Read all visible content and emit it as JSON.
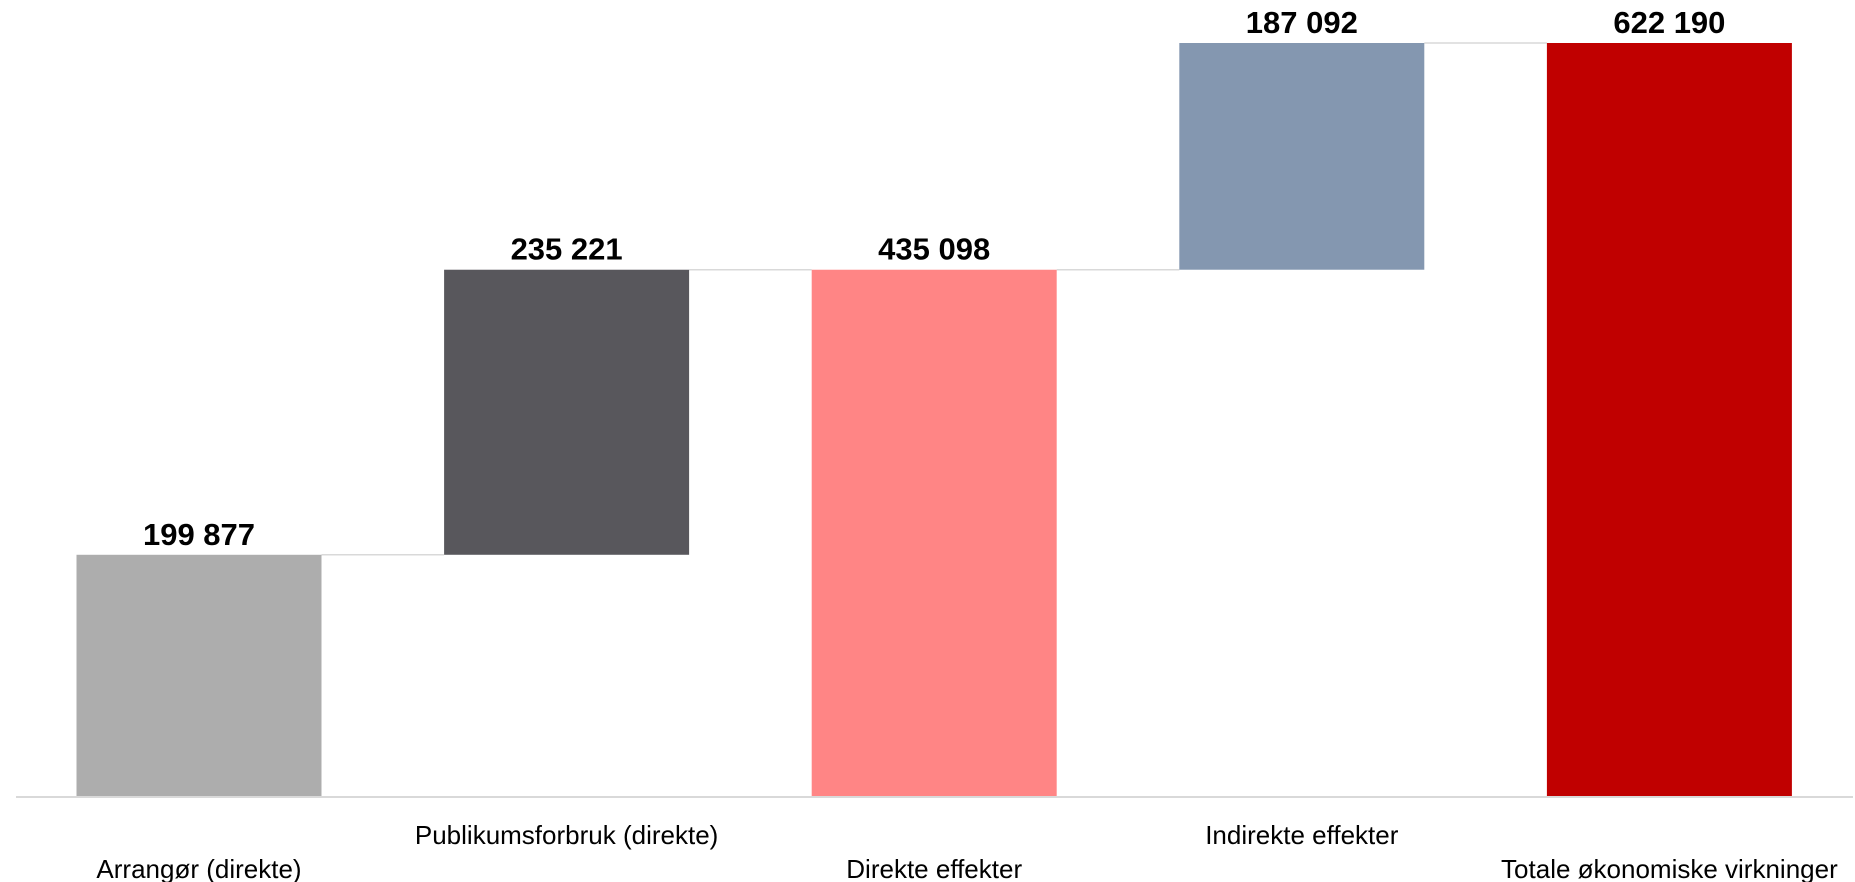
{
  "chart_data": {
    "type": "bar",
    "subtype": "waterfall",
    "categories": [
      "Arrangør (direkte)",
      "Publikumsforbruk (direkte)",
      "Direkte effekter",
      "Indirekte effekter",
      "Totale økonomiske virkninger"
    ],
    "values": [
      199877,
      235221,
      435098,
      187092,
      622190
    ],
    "value_labels": [
      "199 877",
      "235 221",
      "435 098",
      "187 092",
      "622 190"
    ],
    "bar_kind": [
      "increase",
      "increase",
      "total",
      "increase",
      "total"
    ],
    "colors": [
      "#adadad",
      "#58575c",
      "#ff8585",
      "#8497b0",
      "#c00000"
    ],
    "connector_color": "#d9d9d9",
    "axis_color": "#d9d9d9",
    "title": "",
    "xlabel": "",
    "ylabel": "",
    "ylim": [
      0,
      622190
    ],
    "grid": false,
    "legend": "none"
  }
}
